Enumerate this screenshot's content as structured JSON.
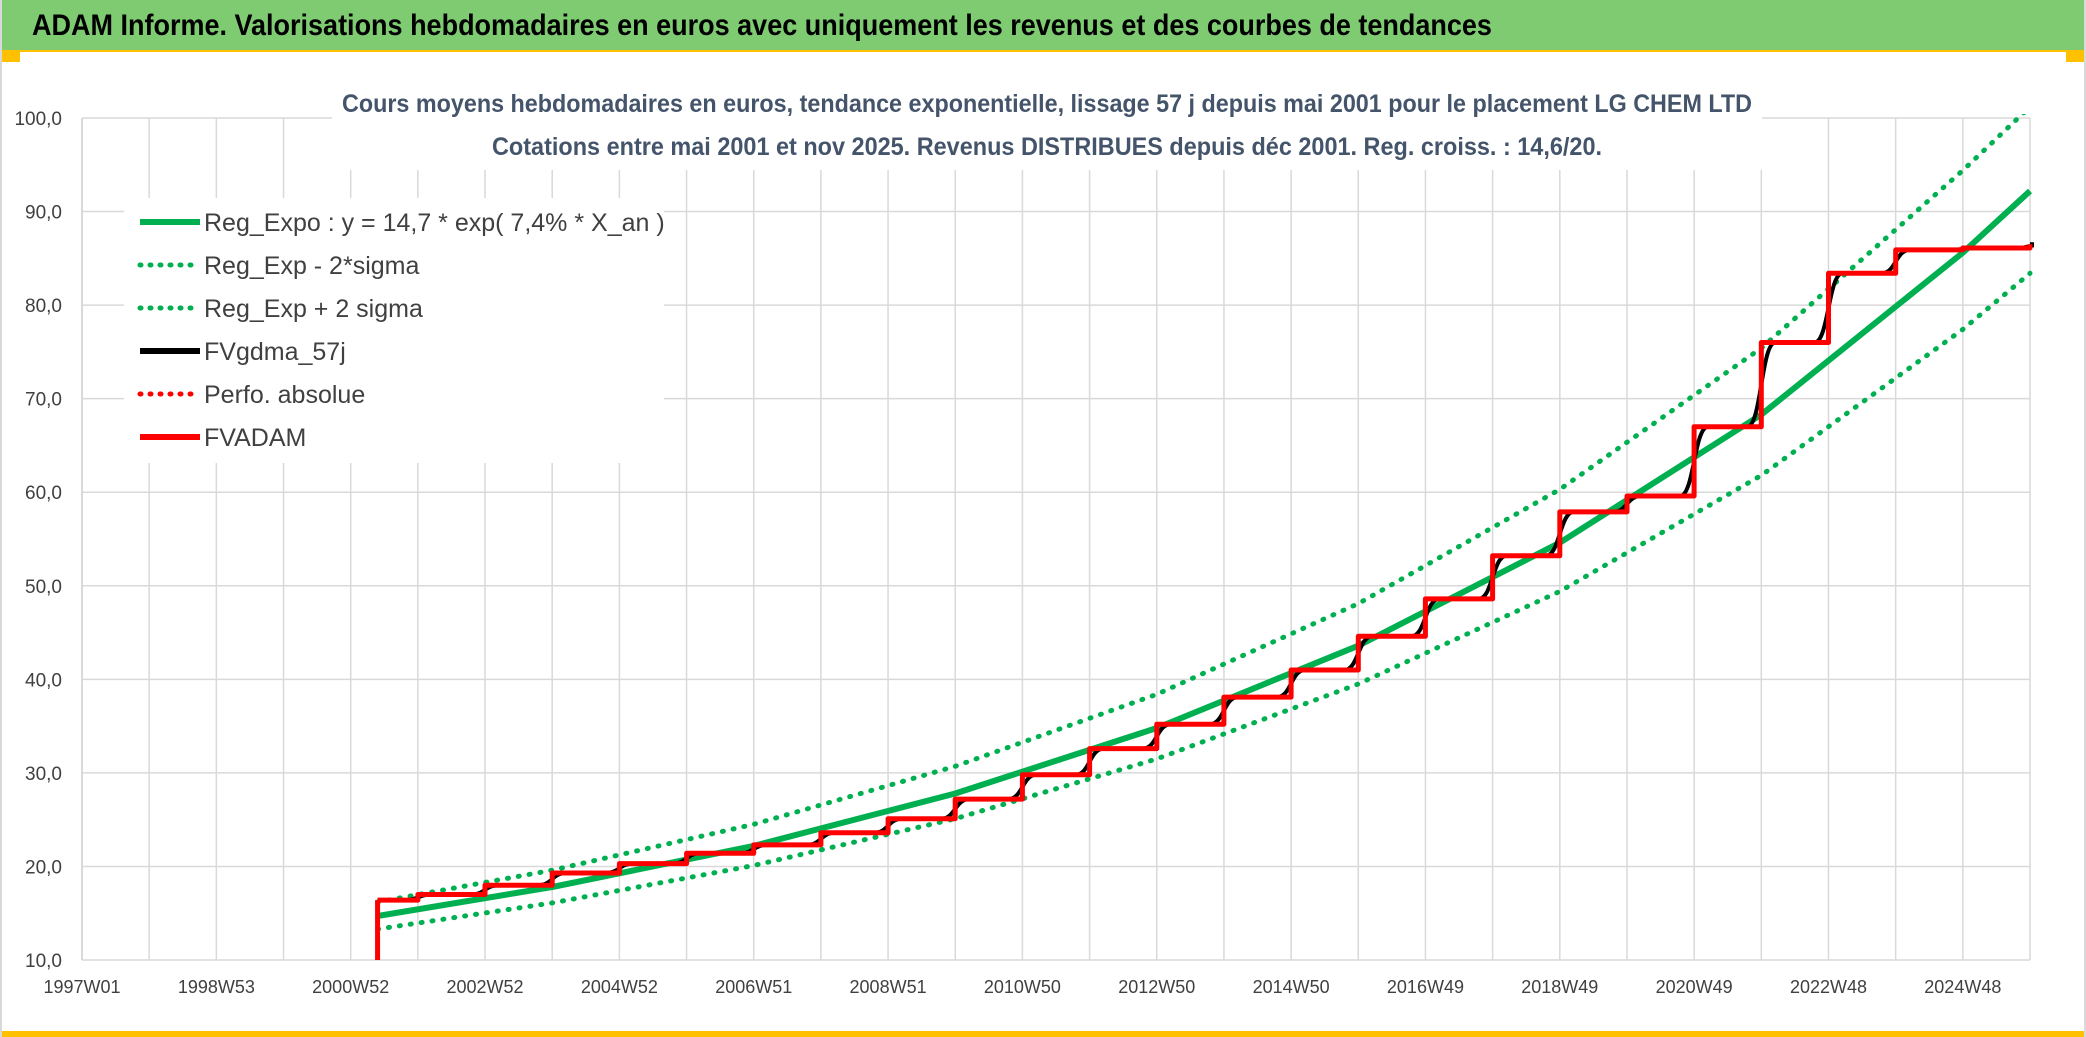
{
  "header": {
    "title": "ADAM Informe. Valorisations hebdomadaires en euros avec uniquement les revenus et des courbes de tendances"
  },
  "colors": {
    "header_bg": "#7ecb72",
    "accent": "#ffc000",
    "reg_green": "#00b050",
    "fv_black": "#000000",
    "adam_red": "#ff0000",
    "grid": "#d9d9d9"
  },
  "chart_data": {
    "type": "line",
    "title": [
      "Cours moyens hebdomadaires en euros, tendance exponentielle, lissage 57 j depuis mai 2001 pour le placement LG CHEM LTD",
      "Cotations entre mai 2001 et nov 2025. Revenus DISTRIBUES depuis déc 2001. Reg. croiss. : 14,6/20."
    ],
    "xlabel": "",
    "ylabel": "",
    "x_unit": "year",
    "xlim": [
      1997.0,
      2026.0
    ],
    "ylim": [
      10,
      100
    ],
    "y_ticks": [
      "10,0",
      "20,0",
      "30,0",
      "40,0",
      "50,0",
      "60,0",
      "70,0",
      "80,0",
      "90,0",
      "100,0"
    ],
    "x_tick_labels": [
      "1997W01",
      "1998W53",
      "2000W52",
      "2002W52",
      "2004W52",
      "2006W51",
      "2008W51",
      "2010W50",
      "2012W50",
      "2014W50",
      "2016W49",
      "2018W49",
      "2020W49",
      "2022W48",
      "2024W48"
    ],
    "grid": true,
    "legend_position": "top-left",
    "legend": [
      {
        "label": "Reg_Expo : y = 14,7 * exp( 7,4% *  X_an )",
        "color": "#00b050",
        "style": "solid"
      },
      {
        "label": "Reg_Exp - 2*sigma",
        "color": "#00b050",
        "style": "dotted"
      },
      {
        "label": "Reg_Exp + 2 sigma",
        "color": "#00b050",
        "style": "dotted"
      },
      {
        "label": "FVgdma_57j",
        "color": "#000000",
        "style": "solid"
      },
      {
        "label": "Perfo. absolue",
        "color": "#ff0000",
        "style": "dotted"
      },
      {
        "label": "FVADAM",
        "color": "#ff0000",
        "style": "solid"
      }
    ],
    "series": [
      {
        "name": "Reg_Expo : y = 14,7 * exp( 7,4% *  X_an )",
        "x": [
          2001.4,
          2004.0,
          2007.0,
          2010.0,
          2013.0,
          2016.0,
          2019.0,
          2022.0,
          2025.0,
          2026.0
        ],
        "y": [
          14.7,
          17.8,
          22.2,
          27.8,
          34.8,
          43.6,
          54.6,
          68.3,
          85.6,
          92.2
        ]
      },
      {
        "name": "Reg_Exp - 2*sigma",
        "x": [
          2001.4,
          2004.0,
          2007.0,
          2010.0,
          2013.0,
          2016.0,
          2019.0,
          2022.0,
          2025.0,
          2026.0
        ],
        "y": [
          13.3,
          16.1,
          20.1,
          25.1,
          31.5,
          39.5,
          49.4,
          61.8,
          77.4,
          83.4
        ]
      },
      {
        "name": "Reg_Exp + 2 sigma",
        "x": [
          2001.4,
          2004.0,
          2007.0,
          2010.0,
          2013.0,
          2016.0,
          2019.0,
          2022.0,
          2025.0,
          2026.0
        ],
        "y": [
          16.2,
          19.6,
          24.5,
          30.7,
          38.4,
          48.1,
          60.3,
          75.4,
          94.4,
          101.2
        ]
      },
      {
        "name": "FVgdma_57j",
        "x": [
          2001.4,
          2002.0,
          2003.0,
          2004.0,
          2005.0,
          2006.0,
          2007.0,
          2008.0,
          2009.0,
          2010.0,
          2011.0,
          2012.0,
          2013.0,
          2014.0,
          2015.0,
          2016.0,
          2017.0,
          2018.0,
          2019.0,
          2020.0,
          2021.0,
          2022.0,
          2023.0,
          2024.0,
          2025.0,
          2026.0
        ],
        "y": [
          16.4,
          17.0,
          18.0,
          19.3,
          20.3,
          21.4,
          22.3,
          23.6,
          25.1,
          27.2,
          29.8,
          32.6,
          35.2,
          38.1,
          41.0,
          44.6,
          48.6,
          53.2,
          57.9,
          59.6,
          67.0,
          76.0,
          83.4,
          85.9,
          86.1,
          86.5
        ]
      },
      {
        "name": "FVADAM",
        "x": [
          2001.4,
          2001.4,
          2002.0,
          2003.0,
          2004.0,
          2005.0,
          2006.0,
          2007.0,
          2008.0,
          2009.0,
          2010.0,
          2011.0,
          2012.0,
          2013.0,
          2014.0,
          2015.0,
          2016.0,
          2017.0,
          2018.0,
          2019.0,
          2020.0,
          2021.0,
          2022.0,
          2023.0,
          2024.0,
          2025.0,
          2026.0
        ],
        "y": [
          10.0,
          16.4,
          17.0,
          18.0,
          19.3,
          20.3,
          21.4,
          22.3,
          23.6,
          25.1,
          27.2,
          29.8,
          32.6,
          35.2,
          38.1,
          41.0,
          44.6,
          48.6,
          53.2,
          57.9,
          59.6,
          67.0,
          76.0,
          83.4,
          85.9,
          86.1,
          86.5
        ]
      }
    ]
  }
}
